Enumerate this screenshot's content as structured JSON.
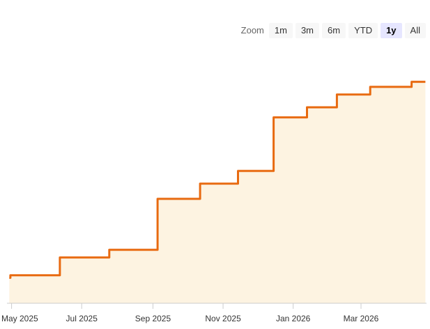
{
  "zoom": {
    "label": "Zoom",
    "buttons": [
      "1m",
      "3m",
      "6m",
      "YTD",
      "1y",
      "All"
    ],
    "selected": "1y"
  },
  "chart_data": {
    "type": "area",
    "title": "",
    "xlabel": "",
    "ylabel": "",
    "xaxis_type": "datetime",
    "x_tick_labels": [
      "May 2025",
      "Jul 2025",
      "Sep 2025",
      "Nov 2025",
      "Jan 2026",
      "Mar 2026"
    ],
    "x_tick_dates": [
      "2025-05-01",
      "2025-07-01",
      "2025-09-01",
      "2025-11-01",
      "2026-01-01",
      "2026-03-01"
    ],
    "y_axis_labels_visible": false,
    "grid": false,
    "legend": "none",
    "line_color": "#e86a10",
    "fill_color": "#fdf3e1",
    "series": [
      {
        "step": true,
        "x": [
          "2025-04-29",
          "2025-04-30",
          "2025-06-12",
          "2025-07-25",
          "2025-09-05",
          "2025-10-12",
          "2025-11-14",
          "2025-12-15",
          "2026-01-13",
          "2026-02-08",
          "2026-03-09",
          "2026-04-14",
          "2026-04-26"
        ],
        "values": [
          70,
          71,
          78,
          81,
          101,
          107,
          112,
          133,
          137,
          142,
          145,
          147,
          147
        ]
      }
    ],
    "ylim": [
      60,
      160
    ]
  }
}
